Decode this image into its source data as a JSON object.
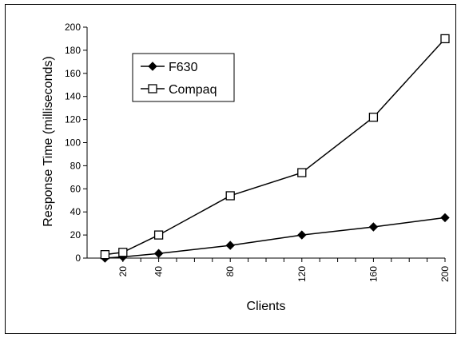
{
  "chart_data": {
    "type": "line",
    "x": [
      10,
      20,
      40,
      80,
      120,
      160,
      200
    ],
    "x_tick_labels": [
      "20",
      "40",
      "80",
      "120",
      "160",
      "200"
    ],
    "x_tick_values": [
      20,
      40,
      80,
      120,
      160,
      200
    ],
    "xlabel": "Clients",
    "ylabel": "Response Time (milliseconds)",
    "ylim": [
      0,
      200
    ],
    "y_ticks": [
      0,
      20,
      40,
      60,
      80,
      100,
      120,
      140,
      160,
      180,
      200
    ],
    "grid": false,
    "legend_position": "top-left",
    "series": [
      {
        "name": "F630",
        "marker": "filled-diamond",
        "color": "#000000",
        "values": [
          0,
          1,
          4,
          11,
          20,
          27,
          35
        ]
      },
      {
        "name": "Compaq",
        "marker": "open-square",
        "color": "#000000",
        "values": [
          3,
          5,
          20,
          54,
          74,
          122,
          190
        ]
      }
    ]
  }
}
